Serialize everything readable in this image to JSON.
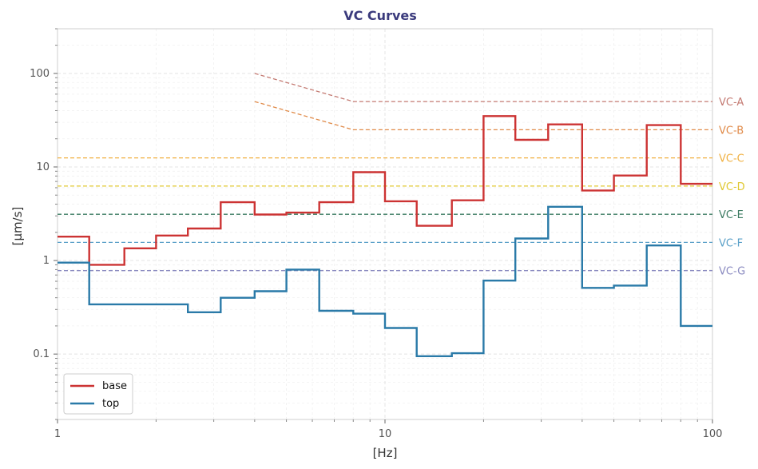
{
  "chart_data": {
    "type": "line",
    "title": "VC Curves",
    "xlabel": "[Hz]",
    "ylabel": "[μm/s]",
    "xscale": "log",
    "yscale": "log",
    "xlim": [
      1,
      100
    ],
    "ylim": [
      0.02,
      300
    ],
    "grid": true,
    "legend_placement": "bottom-left",
    "x_ticks": [
      {
        "value": 1,
        "label": "1"
      },
      {
        "value": 10,
        "label": "10"
      },
      {
        "value": 100,
        "label": "100"
      }
    ],
    "y_ticks": [
      {
        "value": 0.1,
        "label": "0.1"
      },
      {
        "value": 1,
        "label": "1"
      },
      {
        "value": 10,
        "label": "10"
      },
      {
        "value": 100,
        "label": "100"
      }
    ],
    "band_edges": [
      1,
      1.25,
      1.6,
      2,
      2.5,
      3.15,
      4,
      5,
      6.3,
      8,
      10,
      12.5,
      16,
      20,
      25,
      31.5,
      40,
      50,
      63,
      80,
      100
    ],
    "series": [
      {
        "name": "base",
        "color": "#cc3333",
        "step": true,
        "values": [
          1.8,
          0.9,
          1.35,
          1.85,
          2.2,
          4.2,
          3.1,
          3.25,
          4.2,
          8.8,
          4.3,
          2.35,
          4.4,
          35,
          19.5,
          28.5,
          5.6,
          8.1,
          28,
          6.6
        ]
      },
      {
        "name": "top",
        "color": "#2a7aa8",
        "step": true,
        "values": [
          0.95,
          0.34,
          0.34,
          0.34,
          0.28,
          0.4,
          0.47,
          0.8,
          0.29,
          0.27,
          0.19,
          0.095,
          0.102,
          0.61,
          1.72,
          3.75,
          0.51,
          0.54,
          1.45,
          0.2
        ]
      }
    ],
    "vc_curves": [
      {
        "name": "VC-A",
        "color": "#c47a72",
        "points": [
          [
            4,
            100
          ],
          [
            8,
            50
          ],
          [
            100,
            50
          ]
        ]
      },
      {
        "name": "VC-B",
        "color": "#e08a48",
        "points": [
          [
            4,
            50
          ],
          [
            8,
            25
          ],
          [
            100,
            25
          ]
        ]
      },
      {
        "name": "VC-C",
        "color": "#f0b040",
        "points": [
          [
            1,
            12.5
          ],
          [
            100,
            12.5
          ]
        ]
      },
      {
        "name": "VC-D",
        "color": "#e0c830",
        "points": [
          [
            1,
            6.25
          ],
          [
            100,
            6.25
          ]
        ]
      },
      {
        "name": "VC-E",
        "color": "#3a7a60",
        "points": [
          [
            1,
            3.12
          ],
          [
            100,
            3.12
          ]
        ]
      },
      {
        "name": "VC-F",
        "color": "#5aa0c8",
        "points": [
          [
            1,
            1.56
          ],
          [
            100,
            1.56
          ]
        ]
      },
      {
        "name": "VC-G",
        "color": "#8a8ac0",
        "points": [
          [
            1,
            0.78
          ],
          [
            100,
            0.78
          ]
        ]
      }
    ]
  }
}
